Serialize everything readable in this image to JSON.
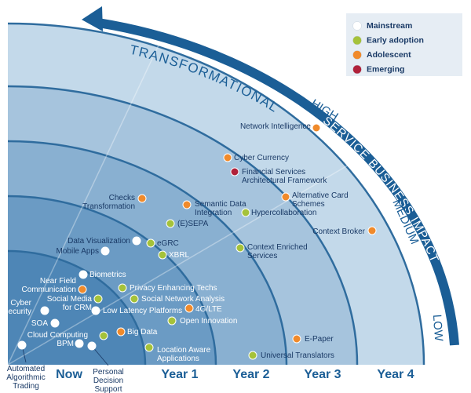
{
  "impact_axis": {
    "title": "SERVICE BUSINESS IMPACT",
    "levels": [
      "TRANSFORMATIONAL",
      "HIGH",
      "MEDIUM",
      "LOW"
    ]
  },
  "time_axis": [
    "Now",
    "Year 1",
    "Year 2",
    "Year 3",
    "Year 4"
  ],
  "legend": [
    {
      "label": "Mainstream",
      "color": "#ffffff"
    },
    {
      "label": "Early adoption",
      "color": "#a5c23a"
    },
    {
      "label": "Adolescent",
      "color": "#f08a2b"
    },
    {
      "label": "Emerging",
      "color": "#b0213a"
    }
  ],
  "nodes": [
    {
      "label": [
        "Network Intelligence"
      ],
      "stage": "Adolescent"
    },
    {
      "label": [
        "Cyber Currency"
      ],
      "stage": "Adolescent"
    },
    {
      "label": [
        "Financial Services",
        "Architectural Framework"
      ],
      "stage": "Emerging"
    },
    {
      "label": [
        "Alternative Card",
        "Schemes"
      ],
      "stage": "Adolescent"
    },
    {
      "label": [
        "Checks",
        "Transformation"
      ],
      "stage": "Adolescent"
    },
    {
      "label": [
        "Semantic Data",
        "Integration"
      ],
      "stage": "Adolescent"
    },
    {
      "label": [
        "Hypercollaboration"
      ],
      "stage": "Early adoption"
    },
    {
      "label": [
        "(E)SEPA"
      ],
      "stage": "Early adoption"
    },
    {
      "label": [
        "Context Broker"
      ],
      "stage": "Adolescent"
    },
    {
      "label": [
        "Data Visualization"
      ],
      "stage": "Mainstream"
    },
    {
      "label": [
        "eGRC"
      ],
      "stage": "Early adoption"
    },
    {
      "label": [
        "Mobile Apps"
      ],
      "stage": "Mainstream"
    },
    {
      "label": [
        "XBRL"
      ],
      "stage": "Early adoption"
    },
    {
      "label": [
        "Context Enriched",
        "Services"
      ],
      "stage": "Early adoption"
    },
    {
      "label": [
        "Biometrics"
      ],
      "stage": "Mainstream"
    },
    {
      "label": [
        "Near Field",
        "Communication"
      ],
      "stage": "Adolescent"
    },
    {
      "label": [
        "Privacy Enhancing Techs"
      ],
      "stage": "Early adoption"
    },
    {
      "label": [
        "Social Media",
        "for CRM"
      ],
      "stage": "Early adoption"
    },
    {
      "label": [
        "Social Network Analysis"
      ],
      "stage": "Early adoption"
    },
    {
      "label": [
        "Cyber",
        "Security"
      ],
      "stage": "Mainstream"
    },
    {
      "label": [
        "Low Latency Platforms"
      ],
      "stage": "Mainstream"
    },
    {
      "label": [
        "4G/LTE"
      ],
      "stage": "Adolescent"
    },
    {
      "label": [
        "SOA"
      ],
      "stage": "Mainstream"
    },
    {
      "label": [
        "Open Innovation"
      ],
      "stage": "Early adoption"
    },
    {
      "label": [
        "Cloud Computing"
      ],
      "stage": "Early adoption"
    },
    {
      "label": [
        "BPM"
      ],
      "stage": "Mainstream"
    },
    {
      "label": [
        "Big Data"
      ],
      "stage": "Adolescent"
    },
    {
      "label": [
        "Location Aware",
        "Applications"
      ],
      "stage": "Early adoption"
    },
    {
      "label": [
        "E-Paper"
      ],
      "stage": "Adolescent"
    },
    {
      "label": [
        "Universal Translators"
      ],
      "stage": "Early adoption"
    },
    {
      "label": [
        "Automated",
        "Algorithmic",
        "Trading"
      ],
      "stage": "Mainstream"
    },
    {
      "label": [
        "Personal",
        "Decision",
        "Support"
      ],
      "stage": "Mainstream"
    }
  ]
}
